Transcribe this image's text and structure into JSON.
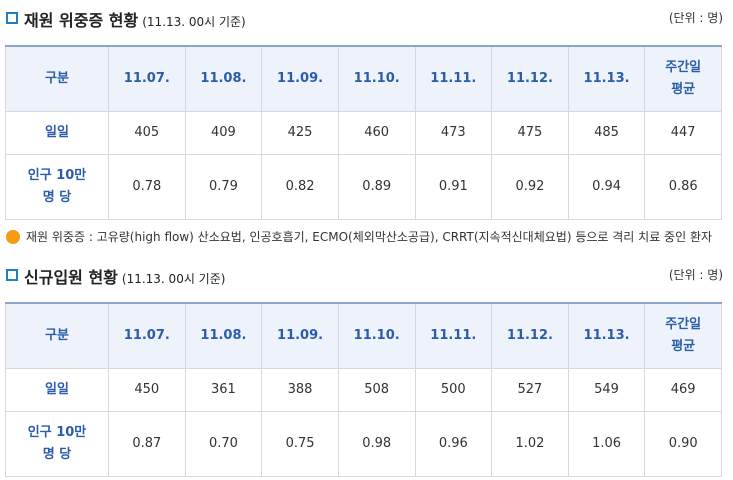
{
  "sections": [
    {
      "title": "재원 위중증 현황",
      "subtitle": "(11.13. 00시 기준)",
      "unit": "(단위 : 명)",
      "table": {
        "header": [
          "구분",
          "11.07.",
          "11.08.",
          "11.09.",
          "11.10.",
          "11.11.",
          "11.12.",
          "11.13.",
          "주간일\n평균"
        ],
        "rows": [
          [
            "일일",
            "405",
            "409",
            "425",
            "460",
            "473",
            "475",
            "485",
            "447"
          ],
          [
            "인구 10만\n명 당",
            "0.78",
            "0.79",
            "0.82",
            "0.89",
            "0.91",
            "0.92",
            "0.94",
            "0.86"
          ]
        ]
      },
      "note": "재원 위중증 : 고유량(high flow) 산소요법, 인공호흡기, ECMO(체외막산소공급), CRRT(지속적신대체요법) 등으로 격리 치료 중인 환자"
    },
    {
      "title": "신규입원 현황",
      "subtitle": "(11.13. 00시 기준)",
      "unit": "(단위 : 명)",
      "table": {
        "header": [
          "구분",
          "11.07.",
          "11.08.",
          "11.09.",
          "11.10.",
          "11.11.",
          "11.12.",
          "11.13.",
          "주간일\n평균"
        ],
        "rows": [
          [
            "일일",
            "450",
            "361",
            "388",
            "508",
            "500",
            "527",
            "549",
            "469"
          ],
          [
            "인구 10만\n명 당",
            "0.87",
            "0.70",
            "0.75",
            "0.98",
            "0.96",
            "1.02",
            "1.06",
            "0.90"
          ]
        ]
      }
    }
  ]
}
